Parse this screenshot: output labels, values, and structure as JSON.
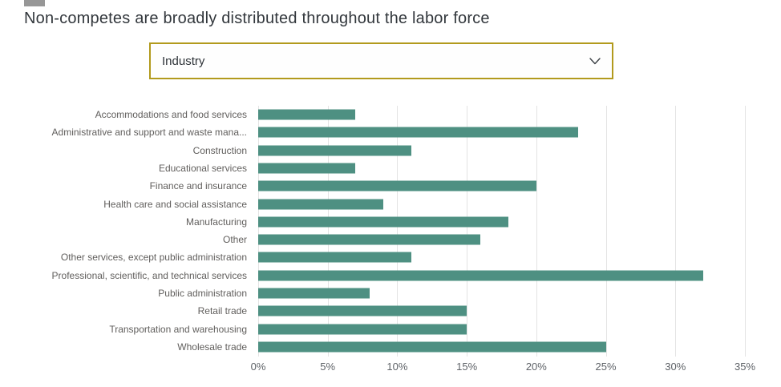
{
  "title": "Non-competes are broadly distributed throughout the labor force",
  "slicer": {
    "selected_value": "Industry",
    "icon": "chevron-down-icon"
  },
  "colors": {
    "bar": "#4e9082",
    "slicer_border": "#b29a1d",
    "title_text": "#32373c",
    "category_text": "#605e5c",
    "gridline": "#e4e4e4",
    "artifact_gray": "#979797"
  },
  "chart_data": {
    "type": "bar",
    "orientation": "horizontal",
    "title": "Non-competes are broadly distributed throughout the labor force",
    "xlabel": "",
    "ylabel": "",
    "unit": "%",
    "xlim": [
      0,
      35
    ],
    "x_ticks": [
      "0%",
      "5%",
      "10%",
      "15%",
      "20%",
      "25%",
      "30%",
      "35%"
    ],
    "grid": true,
    "legend": "none",
    "categories": [
      "Accommodations and food services",
      "Administrative and support and waste mana...",
      "Construction",
      "Educational services",
      "Finance and insurance",
      "Health care and social assistance",
      "Manufacturing",
      "Other",
      "Other services, except public administration",
      "Professional, scientific, and technical services",
      "Public administration",
      "Retail trade",
      "Transportation and warehousing",
      "Wholesale trade"
    ],
    "values": [
      7,
      23,
      11,
      7,
      20,
      9,
      18,
      16,
      11,
      32,
      8,
      15,
      15,
      25
    ]
  }
}
